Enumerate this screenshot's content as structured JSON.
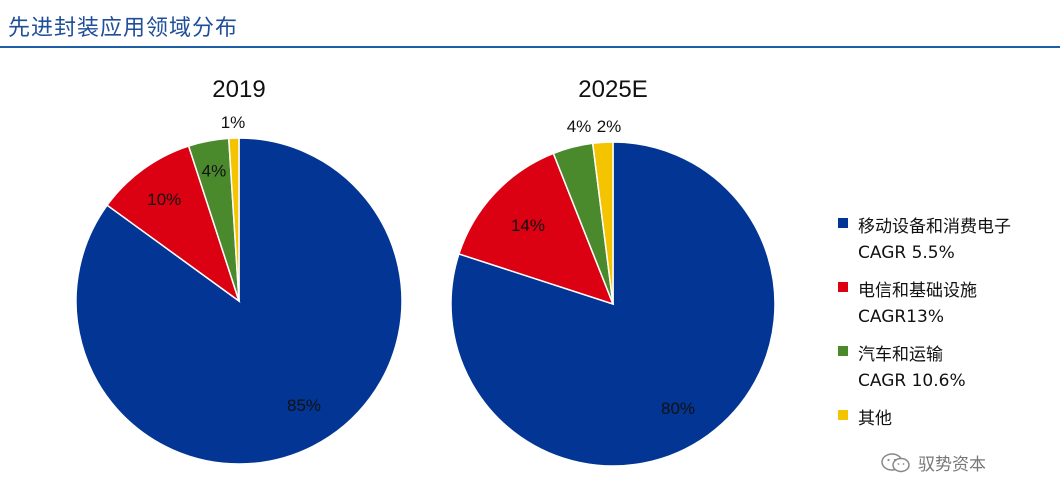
{
  "page": {
    "title": "先进封装应用领域分布"
  },
  "watermark": {
    "text": "驭势资本",
    "icon": "wechat-icon"
  },
  "chart_data": [
    {
      "type": "pie",
      "title": "2019",
      "categories": [
        "移动设备和消费电子",
        "电信和基础设施",
        "汽车和运输",
        "其他"
      ],
      "values": [
        85,
        10,
        4,
        1
      ],
      "data_labels": [
        "85%",
        "10%",
        "4%",
        "1%"
      ],
      "colors": [
        "#023594",
        "#dc0013",
        "#4b8a2c",
        "#f4c400"
      ],
      "start_angle_deg": 0,
      "direction": "clockwise"
    },
    {
      "type": "pie",
      "title": "2025E",
      "categories": [
        "移动设备和消费电子",
        "电信和基础设施",
        "汽车和运输",
        "其他"
      ],
      "values": [
        80,
        14,
        4,
        2
      ],
      "data_labels": [
        "80%",
        "14%",
        "4%",
        "2%"
      ],
      "colors": [
        "#023594",
        "#dc0013",
        "#4b8a2c",
        "#f4c400"
      ],
      "start_angle_deg": 0,
      "direction": "clockwise"
    }
  ],
  "legend": {
    "placement": "right",
    "items": [
      {
        "name": "移动设备和消费电子",
        "sub": "CAGR 5.5%",
        "color": "#023594"
      },
      {
        "name": "电信和基础设施",
        "sub": "CAGR13%",
        "color": "#dc0013"
      },
      {
        "name": "汽车和运输",
        "sub": "CAGR 10.6%",
        "color": "#4b8a2c"
      },
      {
        "name": "其他",
        "sub": "",
        "color": "#f4c400"
      }
    ]
  }
}
